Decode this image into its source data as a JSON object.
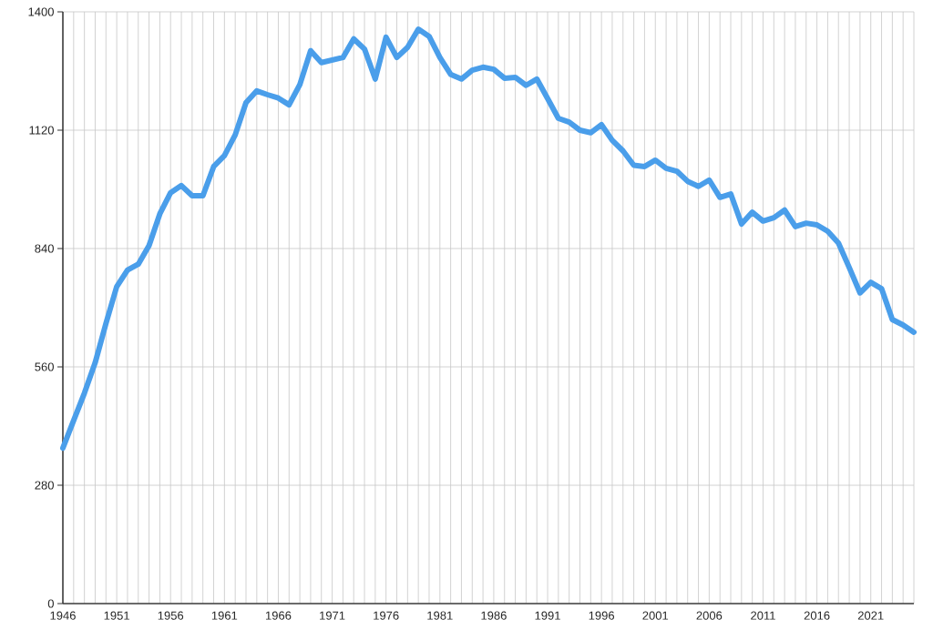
{
  "chart_data": {
    "type": "line",
    "x": [
      1946,
      1947,
      1948,
      1949,
      1950,
      1951,
      1952,
      1953,
      1954,
      1955,
      1956,
      1957,
      1958,
      1959,
      1960,
      1961,
      1962,
      1963,
      1964,
      1965,
      1966,
      1967,
      1968,
      1969,
      1970,
      1971,
      1972,
      1973,
      1974,
      1975,
      1976,
      1977,
      1978,
      1979,
      1980,
      1981,
      1982,
      1983,
      1984,
      1985,
      1986,
      1987,
      1988,
      1989,
      1990,
      1991,
      1992,
      1993,
      1994,
      1995,
      1996,
      1997,
      1998,
      1999,
      2000,
      2001,
      2002,
      2003,
      2004,
      2005,
      2006,
      2007,
      2008,
      2009,
      2010,
      2011,
      2012,
      2013,
      2014,
      2015,
      2016,
      2017,
      2018,
      2019,
      2020,
      2021,
      2022,
      2023,
      2024,
      2025
    ],
    "series": [
      {
        "color": "#4a9eea",
        "values": [
          368,
          433,
          498,
          570,
          663,
          750,
          789,
          803,
          847,
          922,
          972,
          989,
          965,
          965,
          1034,
          1060,
          1109,
          1185,
          1213,
          1204,
          1196,
          1180,
          1228,
          1308,
          1280,
          1286,
          1292,
          1336,
          1312,
          1241,
          1340,
          1292,
          1316,
          1359,
          1342,
          1292,
          1252,
          1241,
          1262,
          1269,
          1264,
          1243,
          1245,
          1226,
          1241,
          1195,
          1148,
          1139,
          1120,
          1114,
          1133,
          1096,
          1071,
          1037,
          1034,
          1049,
          1030,
          1023,
          999,
          987,
          1002,
          961,
          969,
          898,
          926,
          905,
          913,
          931,
          892,
          900,
          896,
          881,
          853,
          795,
          735,
          760,
          745,
          672,
          659,
          642
        ]
      }
    ],
    "xlim": [
      1946,
      2025
    ],
    "xticks": [
      1946,
      {
        "value": 1947,
        "label": null
      },
      {
        "value": 1948,
        "label": null
      },
      {
        "value": 1949,
        "label": null
      },
      {
        "value": 1950,
        "label": null
      },
      1951,
      {
        "value": 1952,
        "label": null
      },
      {
        "value": 1953,
        "label": null
      },
      {
        "value": 1954,
        "label": null
      },
      {
        "value": 1955,
        "label": null
      },
      1956,
      {
        "value": 1957,
        "label": null
      },
      {
        "value": 1958,
        "label": null
      },
      {
        "value": 1959,
        "label": null
      },
      {
        "value": 1960,
        "label": null
      },
      1961,
      {
        "value": 1962,
        "label": null
      },
      {
        "value": 1963,
        "label": null
      },
      {
        "value": 1964,
        "label": null
      },
      {
        "value": 1965,
        "label": null
      },
      1966,
      {
        "value": 1967,
        "label": null
      },
      {
        "value": 1968,
        "label": null
      },
      {
        "value": 1969,
        "label": null
      },
      {
        "value": 1970,
        "label": null
      },
      1971,
      {
        "value": 1972,
        "label": null
      },
      {
        "value": 1973,
        "label": null
      },
      {
        "value": 1974,
        "label": null
      },
      {
        "value": 1975,
        "label": null
      },
      1976,
      {
        "value": 1977,
        "label": null
      },
      {
        "value": 1978,
        "label": null
      },
      {
        "value": 1979,
        "label": null
      },
      {
        "value": 1980,
        "label": null
      },
      1981,
      {
        "value": 1982,
        "label": null
      },
      {
        "value": 1983,
        "label": null
      },
      {
        "value": 1984,
        "label": null
      },
      {
        "value": 1985,
        "label": null
      },
      1986,
      {
        "value": 1987,
        "label": null
      },
      {
        "value": 1988,
        "label": null
      },
      {
        "value": 1989,
        "label": null
      },
      {
        "value": 1990,
        "label": null
      },
      1991,
      {
        "value": 1992,
        "label": null
      },
      {
        "value": 1993,
        "label": null
      },
      {
        "value": 1994,
        "label": null
      },
      {
        "value": 1995,
        "label": null
      },
      1996,
      {
        "value": 1997,
        "label": null
      },
      {
        "value": 1998,
        "label": null
      },
      {
        "value": 1999,
        "label": null
      },
      {
        "value": 2000,
        "label": null
      },
      2001,
      {
        "value": 2002,
        "label": null
      },
      {
        "value": 2003,
        "label": null
      },
      {
        "value": 2004,
        "label": null
      },
      {
        "value": 2005,
        "label": null
      },
      2006,
      {
        "value": 2007,
        "label": null
      },
      {
        "value": 2008,
        "label": null
      },
      {
        "value": 2009,
        "label": null
      },
      {
        "value": 2010,
        "label": null
      },
      2011,
      {
        "value": 2012,
        "label": null
      },
      {
        "value": 2013,
        "label": null
      },
      {
        "value": 2014,
        "label": null
      },
      {
        "value": 2015,
        "label": null
      },
      2016,
      {
        "value": 2017,
        "label": null
      },
      {
        "value": 2018,
        "label": null
      },
      {
        "value": 2019,
        "label": null
      },
      {
        "value": 2020,
        "label": null
      },
      2021,
      {
        "value": 2022,
        "label": null
      },
      {
        "value": 2023,
        "label": null
      },
      {
        "value": 2024,
        "label": null
      },
      {
        "value": 2025,
        "label": null
      }
    ],
    "ylim": [
      0,
      1400
    ],
    "yticks": [
      0,
      280,
      560,
      840,
      1120,
      1400
    ],
    "grid": true,
    "legend": false,
    "marker": "none",
    "line_style": "solid"
  }
}
